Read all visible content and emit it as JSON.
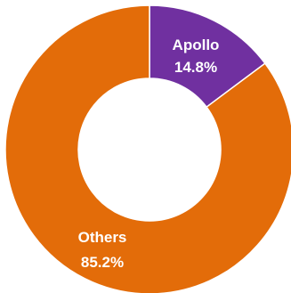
{
  "chart_data": {
    "type": "pie",
    "donut": true,
    "slices": [
      {
        "name": "Apollo",
        "value": 14.8,
        "value_label": "14.8%",
        "color": "#7030A0"
      },
      {
        "name": "Others",
        "value": 85.2,
        "value_label": "85.2%",
        "color": "#E36C09"
      }
    ],
    "start_angle_deg": 0,
    "direction": "clockwise",
    "slice_border_color": "#ffffff",
    "legend": "none"
  }
}
